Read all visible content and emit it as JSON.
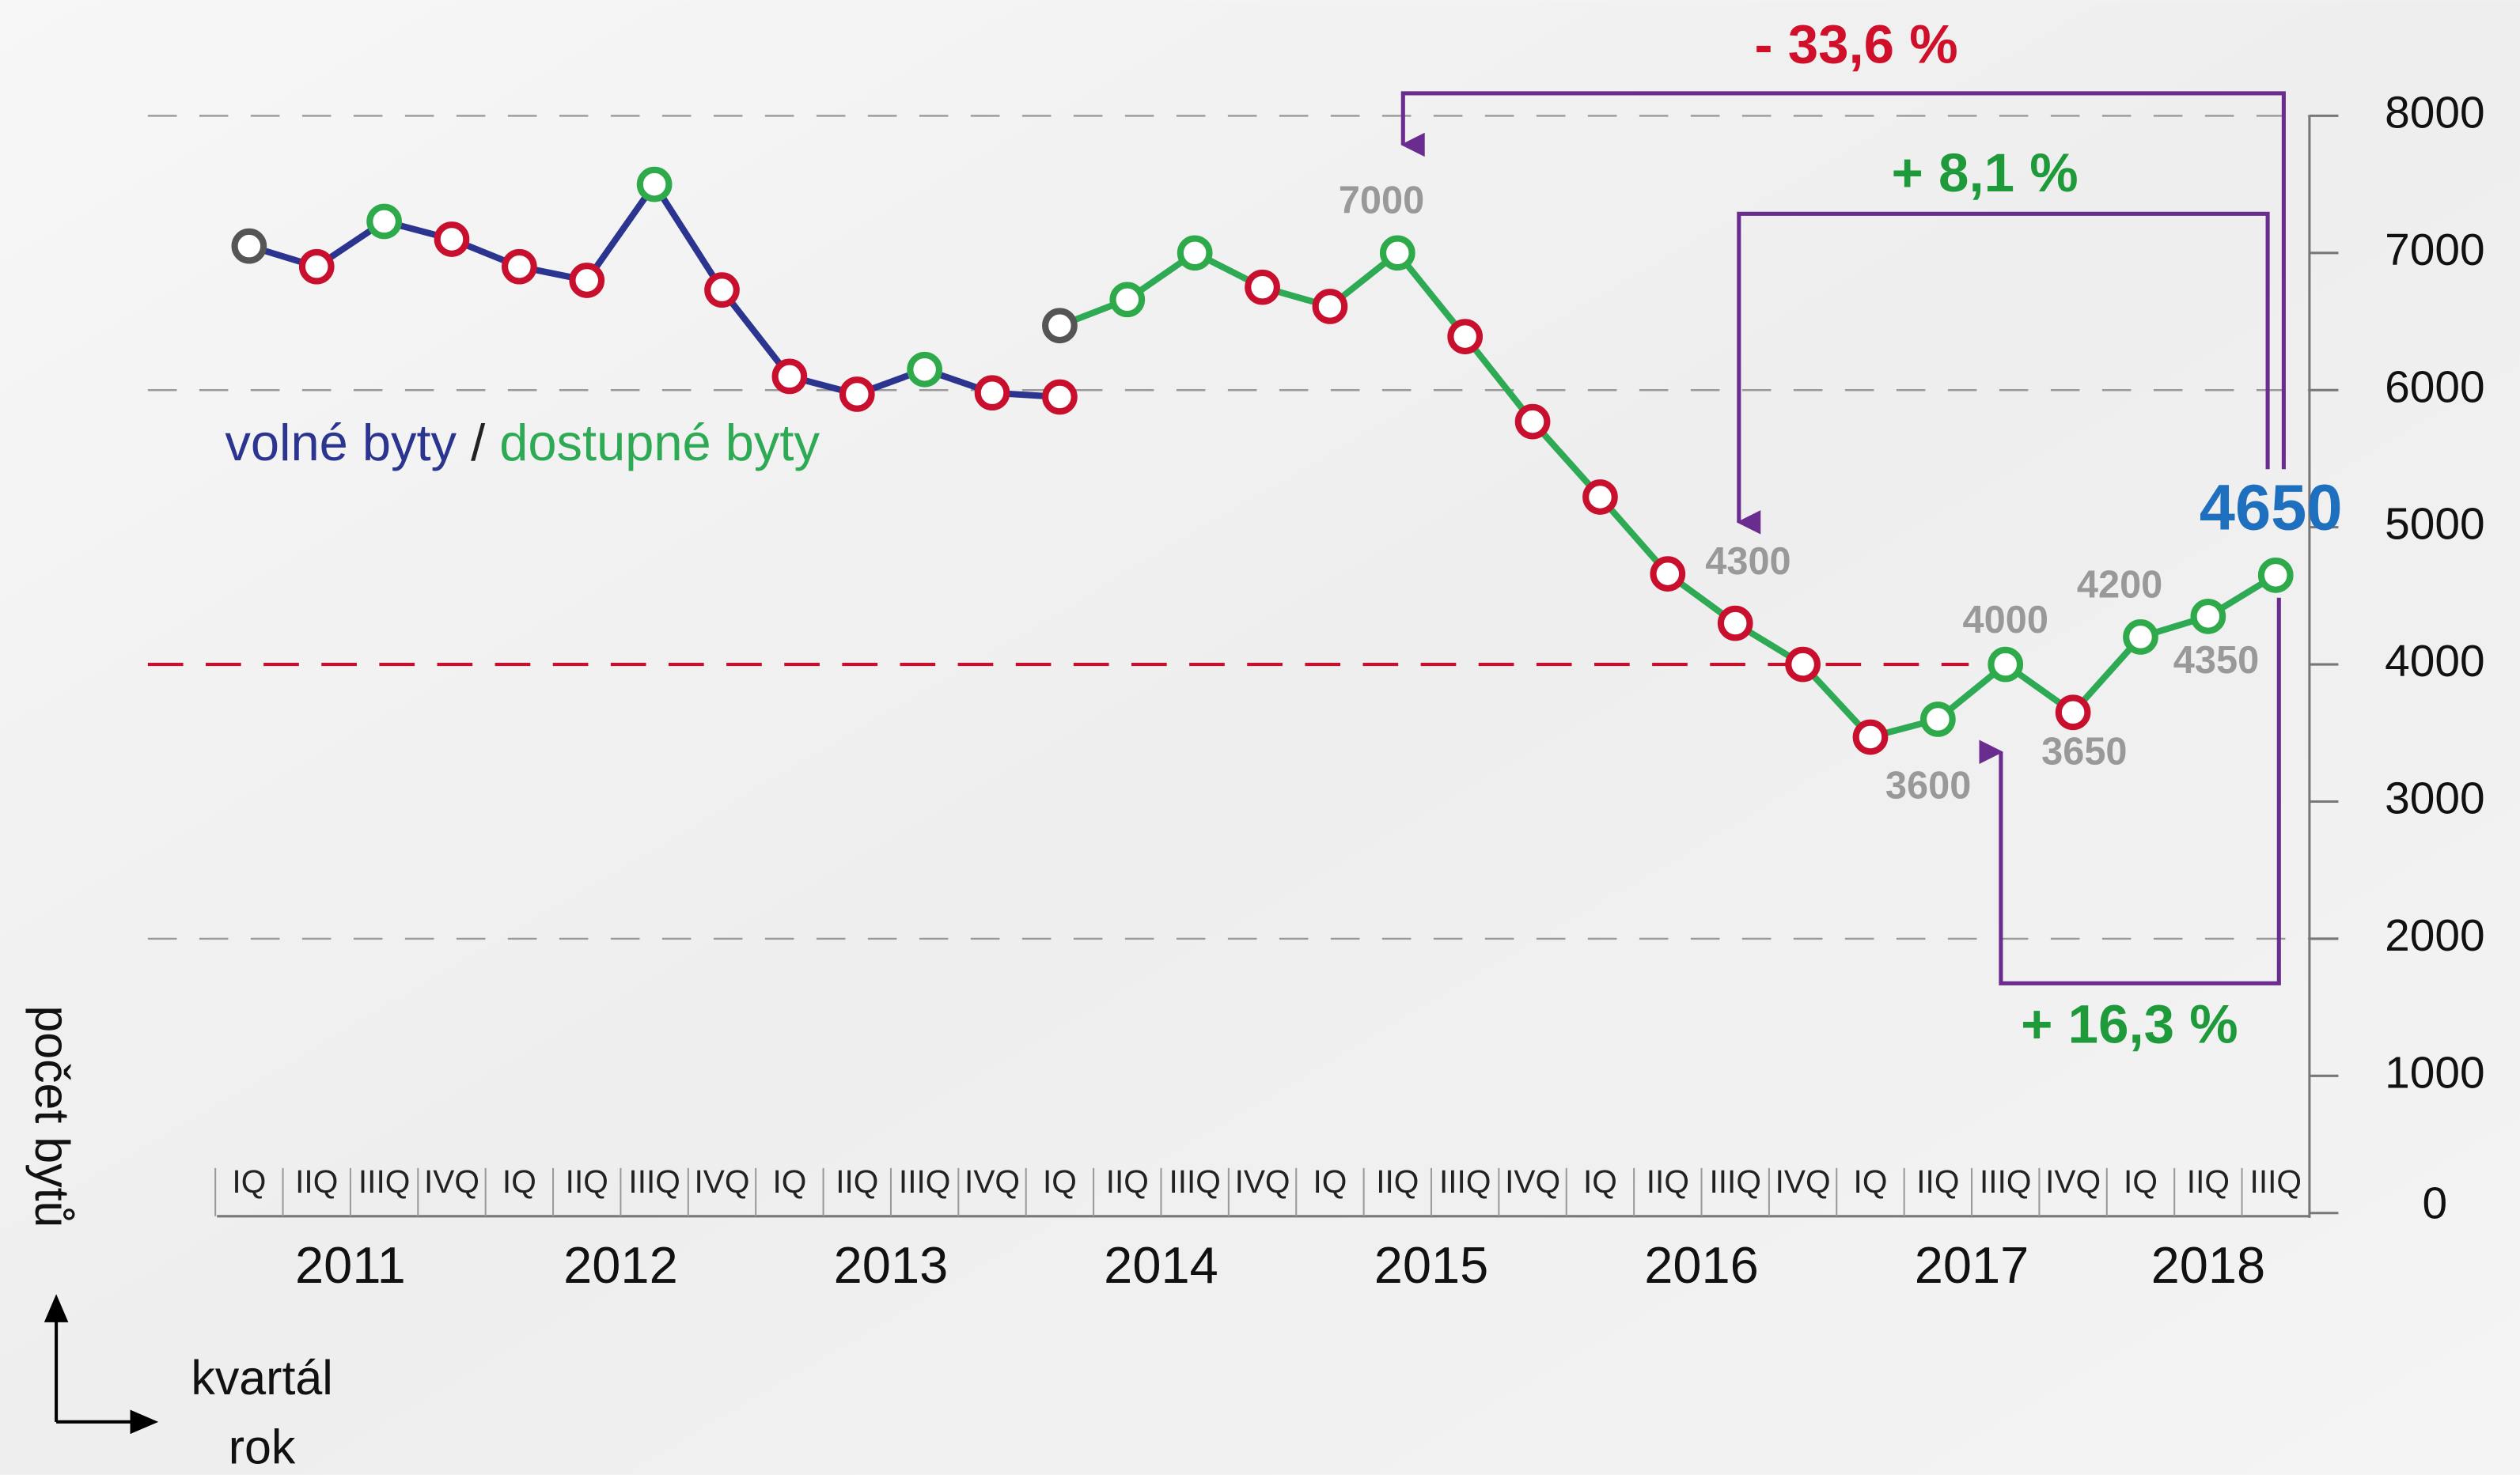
{
  "chart_data": {
    "type": "line",
    "categories": [
      "IQ",
      "IIQ",
      "IIIQ",
      "IVQ",
      "IQ",
      "IIQ",
      "IIIQ",
      "IVQ",
      "IQ",
      "IIQ",
      "IIIQ",
      "IVQ",
      "IQ",
      "IIQ",
      "IIIQ",
      "IVQ",
      "IQ",
      "IIQ",
      "IIIQ",
      "IVQ",
      "IQ",
      "IIQ",
      "IIIQ",
      "IVQ",
      "IQ",
      "IIQ",
      "IIIQ",
      "IVQ",
      "IQ",
      "IIQ",
      "IIIQ"
    ],
    "years": [
      "2011",
      "2012",
      "2013",
      "2014",
      "2015",
      "2016",
      "2017",
      "2018"
    ],
    "series": [
      {
        "name": "volné byty",
        "color": "#2b3590",
        "values": [
          7050,
          6900,
          7230,
          7100,
          6900,
          6800,
          7500,
          6730,
          6100,
          5970,
          6150,
          5980,
          5950,
          null,
          null,
          null,
          null,
          null,
          null,
          null,
          null,
          null,
          null,
          null,
          null,
          null,
          null,
          null,
          null,
          null,
          null
        ],
        "marker_colors": [
          "#555555",
          "#c8102e",
          "#2eaa4a",
          "#c8102e",
          "#c8102e",
          "#c8102e",
          "#2eaa4a",
          "#c8102e",
          "#c8102e",
          "#c8102e",
          "#2eaa4a",
          "#c8102e",
          "#c8102e",
          null,
          null,
          null,
          null,
          null,
          null,
          null,
          null,
          null,
          null,
          null,
          null,
          null,
          null,
          null,
          null,
          null,
          null
        ]
      },
      {
        "name": "dostupné byty",
        "color": "#2eaa55",
        "values": [
          null,
          null,
          null,
          null,
          null,
          null,
          null,
          null,
          null,
          null,
          null,
          null,
          6470,
          6660,
          7000,
          6750,
          6610,
          7000,
          6390,
          5770,
          5220,
          4660,
          4300,
          4000,
          3470,
          3600,
          4000,
          3650,
          4200,
          4350,
          4650
        ],
        "marker_colors": [
          null,
          null,
          null,
          null,
          null,
          null,
          null,
          null,
          null,
          null,
          null,
          null,
          "#555555",
          "#2eaa4a",
          "#2eaa4a",
          "#c8102e",
          "#c8102e",
          "#2eaa4a",
          "#c8102e",
          "#c8102e",
          "#c8102e",
          "#c8102e",
          "#c8102e",
          "#c8102e",
          "#c8102e",
          "#2eaa4a",
          "#2eaa4a",
          "#c8102e",
          "#2eaa4a",
          "#2eaa4a",
          "#2eaa4a"
        ],
        "value_labels": [
          null,
          null,
          null,
          null,
          null,
          null,
          null,
          null,
          null,
          null,
          null,
          null,
          null,
          null,
          null,
          null,
          null,
          "7000",
          null,
          null,
          null,
          null,
          "4300",
          null,
          null,
          "3600",
          "4000",
          "3650",
          "4200",
          "4350",
          "4650"
        ]
      }
    ],
    "legend_separator": "/",
    "ylim": [
      0,
      8000
    ],
    "yticks": [
      0,
      1000,
      2000,
      3000,
      4000,
      5000,
      6000,
      7000,
      8000
    ],
    "grid_ticks": [
      8000,
      6000,
      2000
    ],
    "reference_line": {
      "value": 4000,
      "color": "#c8102e"
    },
    "y_label": "počet bytů",
    "x_label": "kvartál",
    "x2_label": "rok",
    "annotations": [
      {
        "text": "- 33,6 %",
        "color": "#d0102a"
      },
      {
        "text": "+ 8,1 %",
        "color": "#1e9a3a"
      },
      {
        "text": "+ 16,3 %",
        "color": "#1e9a3a"
      }
    ]
  }
}
